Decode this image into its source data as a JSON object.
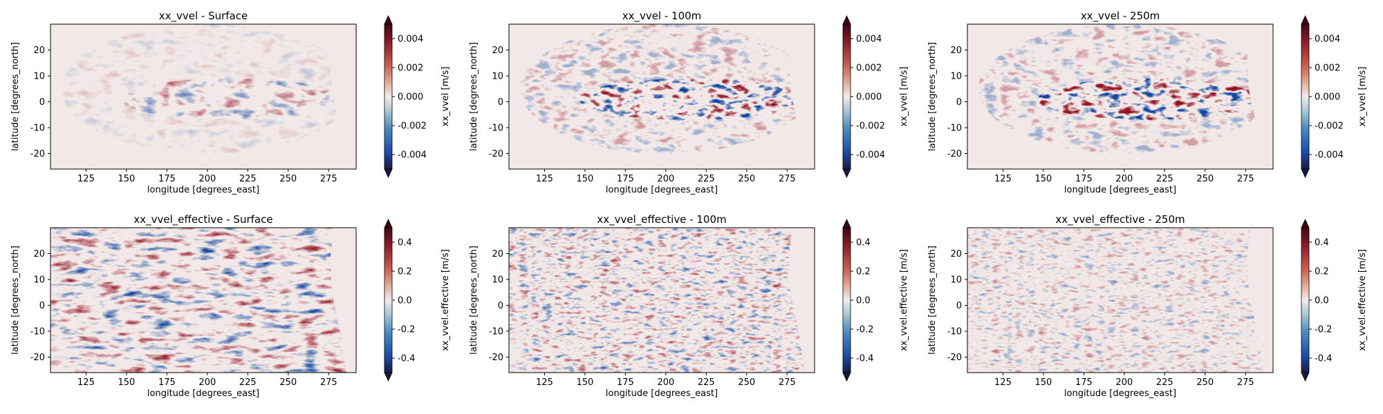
{
  "chart_data": [
    {
      "type": "heatmap",
      "title": "xx_vvel - Surface",
      "xlabel": "longitude [degrees_east]",
      "ylabel": "latitude [degrees_north]",
      "xlim": [
        103,
        292
      ],
      "ylim": [
        -26,
        30
      ],
      "x_ticks": [
        125,
        150,
        175,
        200,
        225,
        250,
        275
      ],
      "y_ticks": [
        -20,
        -10,
        0,
        10,
        20
      ],
      "colorbar": {
        "label": "xx_vvel [m/s]",
        "range": [
          -0.005,
          0.005
        ],
        "ticks": [
          "0.004",
          "0.002",
          "0.000",
          "-0.002",
          "-0.004"
        ],
        "tick_values": [
          0.004,
          0.002,
          0.0,
          -0.002,
          -0.004
        ],
        "extend": "both",
        "colormap": "balance"
      },
      "intensity": "low",
      "grid": false
    },
    {
      "type": "heatmap",
      "title": "xx_vvel - 100m",
      "xlabel": "longitude [degrees_east]",
      "ylabel": "latitude [degrees_north]",
      "xlim": [
        103,
        292
      ],
      "ylim": [
        -26,
        30
      ],
      "x_ticks": [
        125,
        150,
        175,
        200,
        225,
        250,
        275
      ],
      "y_ticks": [
        -20,
        -10,
        0,
        10,
        20
      ],
      "colorbar": {
        "label": "xx_vvel [m/s]",
        "range": [
          -0.005,
          0.005
        ],
        "ticks": [
          "0.004",
          "0.002",
          "0.000",
          "-0.002",
          "-0.004"
        ],
        "tick_values": [
          0.004,
          0.002,
          0.0,
          -0.002,
          -0.004
        ],
        "extend": "both",
        "colormap": "balance"
      },
      "intensity": "high",
      "grid": false
    },
    {
      "type": "heatmap",
      "title": "xx_vvel - 250m",
      "xlabel": "longitude [degrees_east]",
      "ylabel": "latitude [degrees_north]",
      "xlim": [
        103,
        292
      ],
      "ylim": [
        -26,
        30
      ],
      "x_ticks": [
        125,
        150,
        175,
        200,
        225,
        250,
        275
      ],
      "y_ticks": [
        -20,
        -10,
        0,
        10,
        20
      ],
      "colorbar": {
        "label": "xx_vvel [m/s]",
        "range": [
          -0.005,
          0.005
        ],
        "ticks": [
          "0.004",
          "0.002",
          "0.000",
          "-0.002",
          "-0.004"
        ],
        "tick_values": [
          0.004,
          0.002,
          0.0,
          -0.002,
          -0.004
        ],
        "extend": "both",
        "colormap": "balance"
      },
      "intensity": "high",
      "grid": false
    },
    {
      "type": "heatmap",
      "title": "xx_vvel_effective - Surface",
      "xlabel": "longitude [degrees_east]",
      "ylabel": "latitude [degrees_north]",
      "xlim": [
        103,
        292
      ],
      "ylim": [
        -26,
        30
      ],
      "x_ticks": [
        125,
        150,
        175,
        200,
        225,
        250,
        275
      ],
      "y_ticks": [
        -20,
        -10,
        0,
        10,
        20
      ],
      "colorbar": {
        "label": "xx_vvel.effective [m/s]",
        "range": [
          -0.5,
          0.5
        ],
        "ticks": [
          "0.4",
          "0.2",
          "0.0",
          "-0.2",
          "-0.4"
        ],
        "tick_values": [
          0.4,
          0.2,
          0.0,
          -0.2,
          -0.4
        ],
        "extend": "both",
        "colormap": "balance"
      },
      "intensity": "full",
      "grid": false
    },
    {
      "type": "heatmap",
      "title": "xx_vvel_effective - 100m",
      "xlabel": "longitude [degrees_east]",
      "ylabel": "latitude [degrees_north]",
      "xlim": [
        103,
        292
      ],
      "ylim": [
        -26,
        30
      ],
      "x_ticks": [
        125,
        150,
        175,
        200,
        225,
        250,
        275
      ],
      "y_ticks": [
        -20,
        -10,
        0,
        10,
        20
      ],
      "colorbar": {
        "label": "xx_vvel.effective [m/s]",
        "range": [
          -0.5,
          0.5
        ],
        "ticks": [
          "0.4",
          "0.2",
          "0.0",
          "-0.2",
          "-0.4"
        ],
        "tick_values": [
          0.4,
          0.2,
          0.0,
          -0.2,
          -0.4
        ],
        "extend": "both",
        "colormap": "balance"
      },
      "intensity": "medium",
      "grid": false
    },
    {
      "type": "heatmap",
      "title": "xx_vvel_effective - 250m",
      "xlabel": "longitude [degrees_east]",
      "ylabel": "latitude [degrees_north]",
      "xlim": [
        103,
        292
      ],
      "ylim": [
        -26,
        30
      ],
      "x_ticks": [
        125,
        150,
        175,
        200,
        225,
        250,
        275
      ],
      "y_ticks": [
        -20,
        -10,
        0,
        10,
        20
      ],
      "colorbar": {
        "label": "xx_vvel.effective [m/s]",
        "range": [
          -0.5,
          0.5
        ],
        "ticks": [
          "0.4",
          "0.2",
          "0.0",
          "-0.2",
          "-0.4"
        ],
        "tick_values": [
          0.4,
          0.2,
          0.0,
          -0.2,
          -0.4
        ],
        "extend": "both",
        "colormap": "balance"
      },
      "intensity": "low",
      "grid": false
    }
  ]
}
